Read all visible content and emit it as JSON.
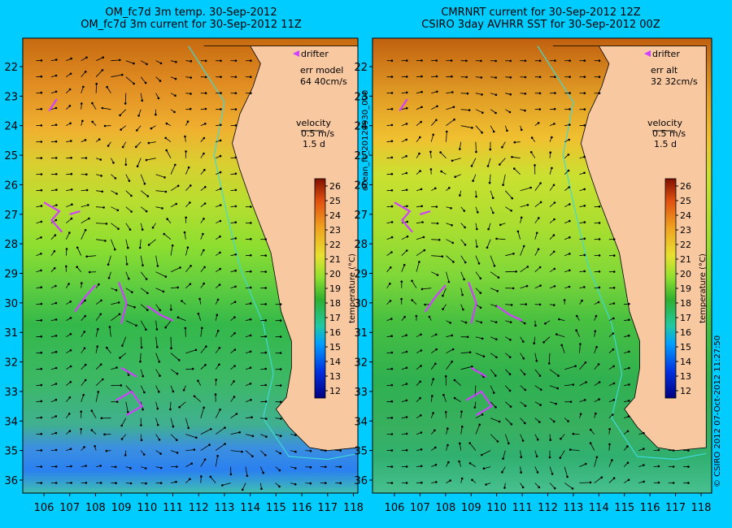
{
  "panels": [
    {
      "title_line1": "OM_fc7d 3m temp. 30-Sep-2012",
      "title_line2": "OM_fc7d 3m current for 30-Sep-2012 11Z",
      "drifter_label": "drifter",
      "err_label": "err model",
      "err_value": "64 40cm/s",
      "velocity_label": "velocity",
      "velocity_scale": "0.5 m/s",
      "velocity_days": "1.5 d"
    },
    {
      "title_line1": "CMRNRT current for 30-Sep-2012 12Z",
      "title_line2": "CSIRO 3day AVHRR SST for 30-Sep-2012 00Z",
      "drifter_label": "drifter",
      "err_label": "err alt",
      "err_value": "32 32cm/s",
      "velocity_label": "velocity",
      "velocity_scale": "0.5 m/s",
      "velocity_days": "1.5 d"
    }
  ],
  "colorbar": {
    "label": "temperature (°C)",
    "ticks": [
      12,
      13,
      14,
      15,
      16,
      17,
      18,
      19,
      20,
      21,
      22,
      23,
      24,
      25,
      26
    ]
  },
  "side_labels": {
    "middle": "ocean_fc_20120930_000",
    "right": "© CSIRO 2012   07-Oct-2012 11:27:50"
  },
  "chart_data": [
    {
      "type": "heatmap",
      "title": "OM_fc7d 3m temp. 30-Sep-2012 / OM_fc7d 3m current for 30-Sep-2012 11Z",
      "x_ticks": [
        106,
        107,
        108,
        109,
        110,
        111,
        112,
        113,
        114,
        115,
        116,
        117,
        118
      ],
      "y_ticks": [
        22,
        23,
        24,
        25,
        26,
        27,
        28,
        29,
        30,
        31,
        32,
        33,
        34,
        35,
        36
      ],
      "xlim": [
        105.5,
        118.2
      ],
      "ylim": [
        21.3,
        36.4
      ],
      "y_inverted": true,
      "colorbar_range": [
        11.5,
        26.5
      ]
    },
    {
      "type": "heatmap",
      "title": "CMRNRT current for 30-Sep-2012 12Z / CSIRO 3day AVHRR SST for 30-Sep-2012 00Z",
      "x_ticks": [
        106,
        107,
        108,
        109,
        110,
        111,
        112,
        113,
        114,
        115,
        116,
        117,
        118
      ],
      "y_ticks": [
        22,
        23,
        24,
        25,
        26,
        27,
        28,
        29,
        30,
        31,
        32,
        33,
        34,
        35,
        36
      ],
      "xlim": [
        105.5,
        118.2
      ],
      "ylim": [
        21.3,
        36.4
      ],
      "y_inverted": true,
      "colorbar_range": [
        11.5,
        26.5
      ]
    }
  ]
}
